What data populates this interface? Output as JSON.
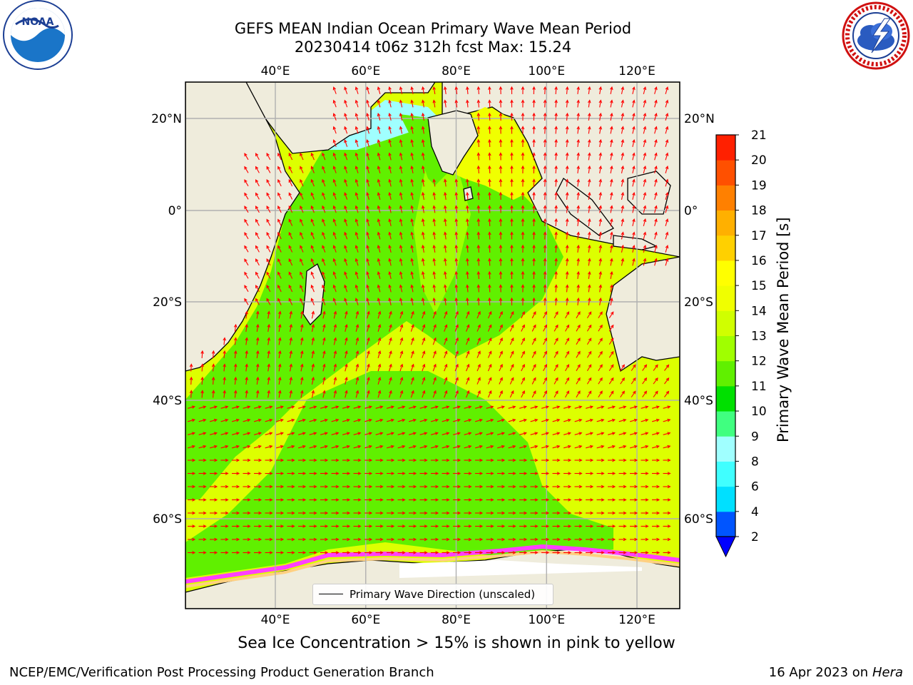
{
  "header": {
    "title_line1": "GEFS MEAN Indian Ocean Primary Wave Mean Period",
    "title_line2": "20230414 t06z 312h fcst   Max: 15.24"
  },
  "logos": {
    "left": {
      "icon": "noaa-logo-icon",
      "text": "NOAA"
    },
    "right": {
      "icon": "nws-logo-icon"
    }
  },
  "map": {
    "lon_ticks_top": [
      "40°E",
      "60°E",
      "80°E",
      "100°E",
      "120°E"
    ],
    "lon_ticks_bottom": [
      "40°E",
      "60°E",
      "80°E",
      "100°E",
      "120°E"
    ],
    "lat_ticks_left": [
      "20°N",
      "0°",
      "20°S",
      "40°S",
      "60°S"
    ],
    "lat_ticks_right": [
      "20°N",
      "0°",
      "20°S",
      "40°S",
      "60°S"
    ],
    "lon_range": [
      20,
      130
    ],
    "lat_range": [
      -73,
      28
    ],
    "colors": {
      "land": "#efecdc",
      "grid": "#b0b0b0",
      "arrow": "#ff0000",
      "coast": "#000000"
    }
  },
  "colorbar": {
    "title": "Primary Wave Mean Period [s]",
    "tick_labels": [
      "2",
      "4",
      "6",
      "8",
      "9",
      "10",
      "11",
      "12",
      "13",
      "14",
      "15",
      "16",
      "17",
      "18",
      "19",
      "20",
      "21"
    ],
    "levels": [
      2,
      4,
      6,
      8,
      9,
      10,
      11,
      12,
      13,
      14,
      15,
      16,
      17,
      18,
      19,
      20,
      21
    ],
    "colors": [
      "#0055ff",
      "#00e0ff",
      "#40ffff",
      "#a0ffff",
      "#40ff80",
      "#00e000",
      "#60f000",
      "#a0ff00",
      "#d0ff00",
      "#f0ff00",
      "#ffff00",
      "#ffd000",
      "#ffb000",
      "#ff8000",
      "#ff5000",
      "#ff2000",
      "#ff0000"
    ],
    "extend_color": "#0000ff"
  },
  "legend": {
    "label": "Primary Wave Direction (unscaled)"
  },
  "notes": {
    "sea_ice": "Sea Ice Concentration > 15% is shown in pink to yellow"
  },
  "footer": {
    "left": "NCEP/EMC/Verification Post Processing Product Generation Branch",
    "right_prefix": "16 Apr 2023 on ",
    "right_machine": "Hera"
  }
}
